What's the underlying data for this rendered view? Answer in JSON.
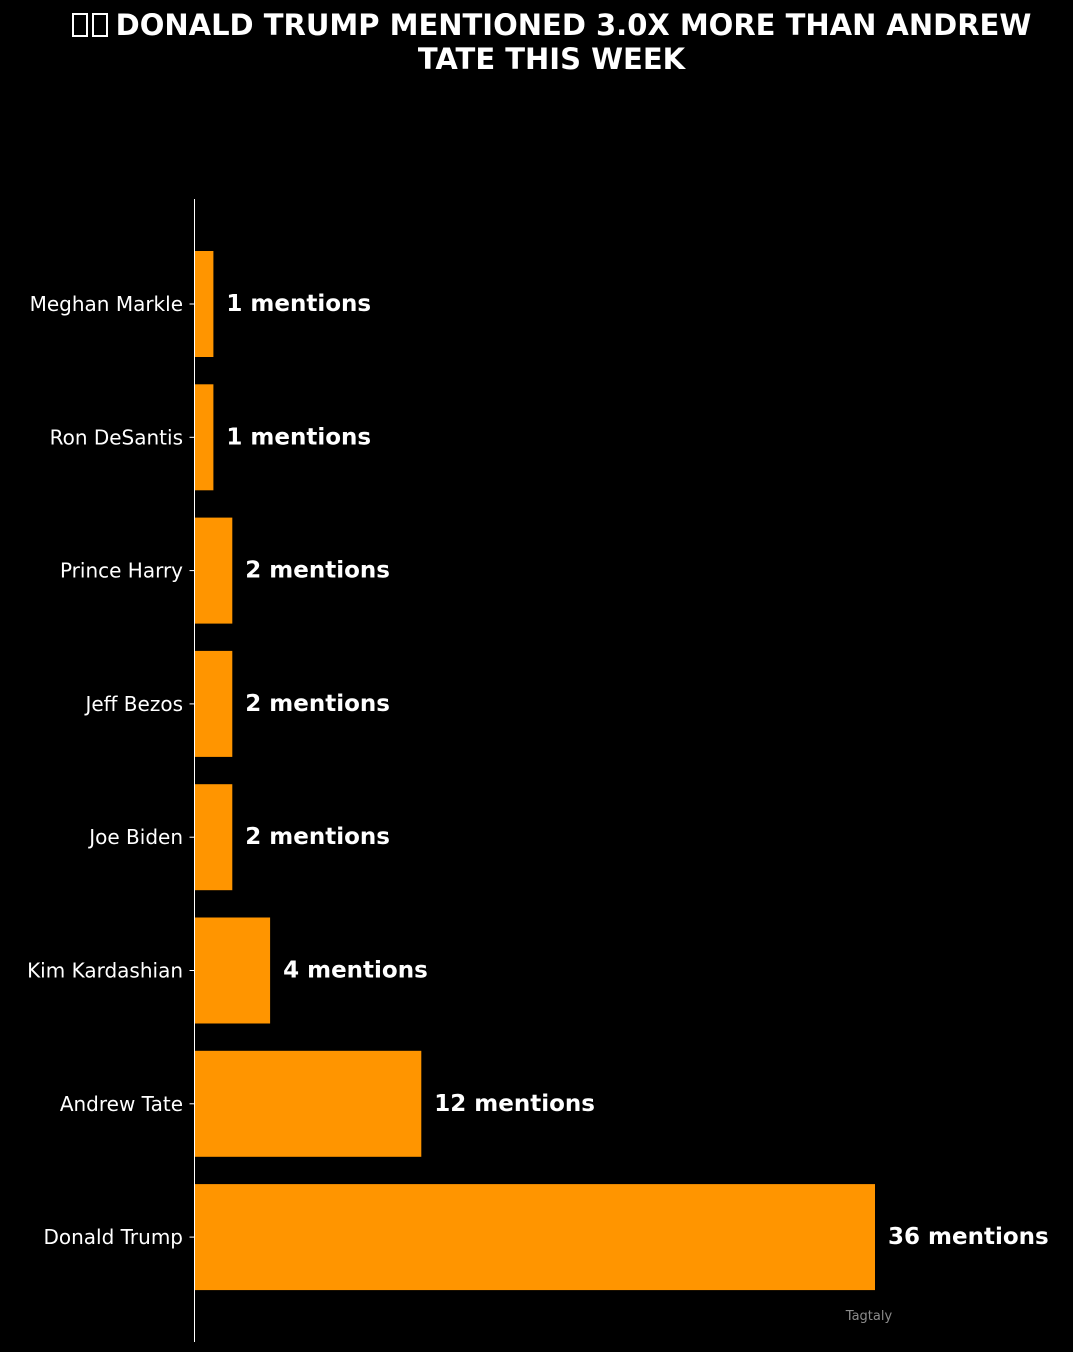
{
  "chart_data": {
    "type": "bar",
    "orientation": "horizontal",
    "title": "DONALD TRUMP MENTIONED 3.0X MORE THAN ANDREW TATE THIS WEEK",
    "title_flag_icon": "flag-emoji-icon",
    "categories": [
      "Meghan Markle",
      "Ron DeSantis",
      "Prince Harry",
      "Jeff Bezos",
      "Joe Biden",
      "Kim Kardashian",
      "Andrew Tate",
      "Donald Trump"
    ],
    "values": [
      1,
      1,
      2,
      2,
      2,
      4,
      12,
      36
    ],
    "value_labels": [
      "1 mentions",
      "1 mentions",
      "2 mentions",
      "2 mentions",
      "2 mentions",
      "4 mentions",
      "12 mentions",
      "36 mentions"
    ],
    "xlim": [
      0,
      38.2
    ],
    "xlabel": "",
    "ylabel": "",
    "grid": false,
    "source": "Tagtaly",
    "colors": {
      "background": "#000000",
      "bar": "#ff9500",
      "text": "#ffffff",
      "source": "#8c8c8c"
    }
  }
}
